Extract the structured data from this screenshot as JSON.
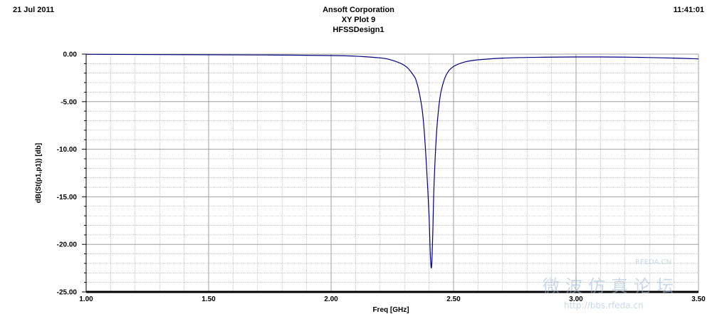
{
  "header": {
    "date": "21 Jul 2011",
    "time": "11:41:01",
    "title_lines": [
      "Ansoft Corporation",
      "XY Plot 9",
      "HFSSDesign1"
    ]
  },
  "watermark": {
    "site_chinese": "微波仿真论坛",
    "brand": "RFEDA.CN",
    "url": "http://bbs.rfeda.cn"
  },
  "colors": {
    "trace": "#00007F",
    "grid": "#A0A0A0",
    "axis": "#000000",
    "watermark": "#9DB9D6"
  },
  "chart_data": {
    "type": "line",
    "xlabel": "Freq [GHz]",
    "ylabel": "dB(St(p1,p1)) [db]",
    "xlim": [
      1.0,
      3.5
    ],
    "ylim": [
      -25.0,
      0.0
    ],
    "x_ticks": [
      "1.00",
      "1.50",
      "2.00",
      "2.50",
      "3.00",
      "3.50"
    ],
    "y_ticks": [
      "0.00",
      "-5.00",
      "-10.00",
      "-15.00",
      "-20.00",
      "-25.00"
    ],
    "grid": true,
    "series": [
      {
        "x": [
          1.0,
          1.3,
          1.6,
          1.8,
          2.0,
          2.1,
          2.2,
          2.25,
          2.3,
          2.33,
          2.35,
          2.37,
          2.38,
          2.39,
          2.4,
          2.405,
          2.41,
          2.415,
          2.42,
          2.43,
          2.44,
          2.45,
          2.47,
          2.5,
          2.55,
          2.6,
          2.7,
          2.8,
          2.9,
          3.0,
          3.1,
          3.2,
          3.3,
          3.4,
          3.5
        ],
        "y": [
          -0.02,
          -0.05,
          -0.08,
          -0.1,
          -0.15,
          -0.22,
          -0.4,
          -0.65,
          -1.2,
          -2.0,
          -3.0,
          -5.5,
          -8.0,
          -12.0,
          -17.0,
          -21.0,
          -22.4,
          -19.0,
          -14.0,
          -8.5,
          -5.5,
          -3.8,
          -2.2,
          -1.3,
          -0.8,
          -0.6,
          -0.42,
          -0.35,
          -0.32,
          -0.3,
          -0.3,
          -0.32,
          -0.36,
          -0.42,
          -0.5
        ]
      }
    ]
  }
}
